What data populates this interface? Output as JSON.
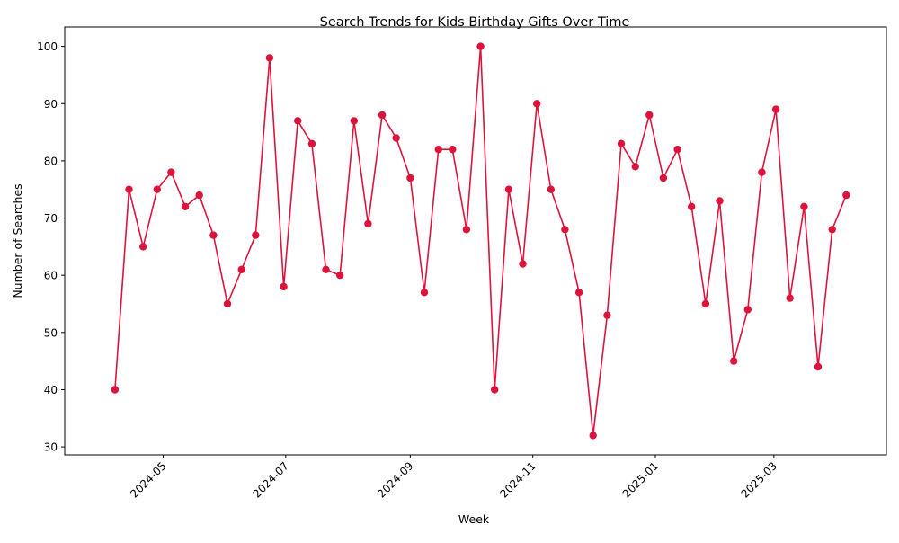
{
  "chart_data": {
    "type": "line",
    "title": "Search Trends for Kids Birthday Gifts Over Time",
    "xlabel": "Week",
    "ylabel": "Number of Searches",
    "x_tick_labels": [
      "2024-05",
      "2024-07",
      "2024-09",
      "2024-11",
      "2025-01",
      "2025-03"
    ],
    "y_tick_labels": [
      "30",
      "40",
      "50",
      "60",
      "70",
      "80",
      "90",
      "100"
    ],
    "series_color": "#dc143c",
    "marker": "circle",
    "grid": false,
    "legend": "none",
    "x_range": [
      "2024-03-13",
      "2025-04-26"
    ],
    "y_range": [
      28.6,
      103.4
    ],
    "x": [
      "2024-04-07",
      "2024-04-14",
      "2024-04-21",
      "2024-04-28",
      "2024-05-05",
      "2024-05-12",
      "2024-05-19",
      "2024-05-26",
      "2024-06-02",
      "2024-06-09",
      "2024-06-16",
      "2024-06-23",
      "2024-06-30",
      "2024-07-07",
      "2024-07-14",
      "2024-07-21",
      "2024-07-28",
      "2024-08-04",
      "2024-08-11",
      "2024-08-18",
      "2024-08-25",
      "2024-09-01",
      "2024-09-08",
      "2024-09-15",
      "2024-09-22",
      "2024-09-29",
      "2024-10-06",
      "2024-10-13",
      "2024-10-20",
      "2024-10-27",
      "2024-11-03",
      "2024-11-10",
      "2024-11-17",
      "2024-11-24",
      "2024-12-01",
      "2024-12-08",
      "2024-12-15",
      "2024-12-22",
      "2024-12-29",
      "2025-01-05",
      "2025-01-12",
      "2025-01-19",
      "2025-01-26",
      "2025-02-02",
      "2025-02-09",
      "2025-02-16",
      "2025-02-23",
      "2025-03-02",
      "2025-03-09",
      "2025-03-16",
      "2025-03-23",
      "2025-03-30",
      "2025-04-06"
    ],
    "values": [
      40,
      75,
      65,
      75,
      78,
      72,
      74,
      67,
      55,
      61,
      67,
      98,
      58,
      87,
      83,
      61,
      60,
      87,
      69,
      88,
      84,
      77,
      57,
      82,
      82,
      68,
      100,
      40,
      75,
      62,
      90,
      75,
      68,
      57,
      32,
      53,
      83,
      79,
      88,
      77,
      82,
      72,
      55,
      73,
      45,
      54,
      78,
      89,
      56,
      72,
      44,
      68,
      74
    ]
  }
}
